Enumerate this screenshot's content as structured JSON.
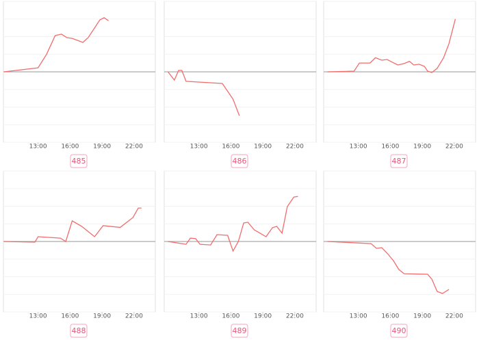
{
  "chart_data": [
    {
      "type": "line",
      "label": "485",
      "xlim": [
        9.75,
        24
      ],
      "ylim": [
        -4,
        4
      ],
      "yticks": [
        -4,
        -3,
        -2,
        -1,
        0,
        1,
        2,
        3,
        4
      ],
      "xticks": [
        {
          "value": 13,
          "label": "13:00"
        },
        {
          "value": 16,
          "label": "16:00"
        },
        {
          "value": 19,
          "label": "19:00"
        },
        {
          "value": 22,
          "label": "22:00"
        }
      ],
      "series": [
        {
          "color": "#f26b6b",
          "x": [
            9.8,
            13.0,
            13.8,
            14.6,
            15.2,
            15.7,
            16.2,
            17.2,
            17.7,
            18.8,
            19.2,
            19.6
          ],
          "values": [
            0,
            0.23,
            1.0,
            2.06,
            2.14,
            1.94,
            1.9,
            1.67,
            1.94,
            2.95,
            3.07,
            2.9
          ]
        }
      ]
    },
    {
      "type": "line",
      "label": "486",
      "xlim": [
        9.75,
        24
      ],
      "ylim": [
        -4,
        4
      ],
      "yticks": [
        -4,
        -3,
        -2,
        -1,
        0,
        1,
        2,
        3,
        4
      ],
      "xticks": [
        {
          "value": 13,
          "label": "13:00"
        },
        {
          "value": 16,
          "label": "16:00"
        },
        {
          "value": 19,
          "label": "19:00"
        },
        {
          "value": 22,
          "label": "22:00"
        }
      ],
      "series": [
        {
          "color": "#f26b6b",
          "x": [
            10.1,
            10.7,
            11.1,
            11.4,
            11.8,
            15.2,
            16.2,
            16.8
          ],
          "values": [
            0,
            -0.47,
            0.08,
            0.08,
            -0.54,
            -0.66,
            -1.55,
            -2.49
          ]
        }
      ]
    },
    {
      "type": "line",
      "label": "487",
      "xlim": [
        9.75,
        24
      ],
      "ylim": [
        -4,
        4
      ],
      "yticks": [
        -4,
        -3,
        -2,
        -1,
        0,
        1,
        2,
        3,
        4
      ],
      "xticks": [
        {
          "value": 13,
          "label": "13:00"
        },
        {
          "value": 16,
          "label": "16:00"
        },
        {
          "value": 19,
          "label": "19:00"
        },
        {
          "value": 22,
          "label": "22:00"
        }
      ],
      "series": [
        {
          "color": "#f26b6b",
          "x": [
            10.1,
            12.6,
            13.1,
            14.1,
            14.6,
            15.2,
            15.7,
            16.7,
            17.3,
            17.8,
            18.2,
            18.7,
            19.2,
            19.5,
            19.9,
            20.4,
            21.0,
            21.5,
            22.1
          ],
          "values": [
            0,
            0.04,
            0.5,
            0.5,
            0.8,
            0.66,
            0.7,
            0.39,
            0.47,
            0.6,
            0.39,
            0.43,
            0.31,
            0.04,
            -0.04,
            0.2,
            0.8,
            1.6,
            3.0
          ]
        }
      ]
    },
    {
      "type": "line",
      "label": "488",
      "xlim": [
        9.75,
        24
      ],
      "ylim": [
        -4,
        4
      ],
      "yticks": [
        -4,
        -3,
        -2,
        -1,
        0,
        1,
        2,
        3,
        4
      ],
      "xticks": [
        {
          "value": 13,
          "label": "13:00"
        },
        {
          "value": 16,
          "label": "16:00"
        },
        {
          "value": 19,
          "label": "19:00"
        },
        {
          "value": 22,
          "label": "22:00"
        }
      ],
      "series": [
        {
          "color": "#f26b6b",
          "x": [
            9.8,
            12.7,
            13.0,
            15.1,
            15.6,
            16.2,
            17.1,
            18.3,
            19.1,
            20.7,
            21.9,
            22.4,
            22.7
          ],
          "values": [
            0,
            -0.04,
            0.27,
            0.19,
            0,
            1.17,
            0.86,
            0.27,
            0.9,
            0.8,
            1.36,
            1.9,
            1.9
          ]
        }
      ]
    },
    {
      "type": "line",
      "label": "489",
      "xlim": [
        9.75,
        24
      ],
      "ylim": [
        -4,
        4
      ],
      "yticks": [
        -4,
        -3,
        -2,
        -1,
        0,
        1,
        2,
        3,
        4
      ],
      "xticks": [
        {
          "value": 13,
          "label": "13:00"
        },
        {
          "value": 16,
          "label": "16:00"
        },
        {
          "value": 19,
          "label": "19:00"
        },
        {
          "value": 22,
          "label": "22:00"
        }
      ],
      "series": [
        {
          "color": "#f26b6b",
          "x": [
            10.1,
            11.8,
            12.2,
            12.7,
            13.1,
            14.1,
            14.7,
            15.7,
            16.2,
            16.7,
            17.2,
            17.6,
            18.2,
            19.3,
            19.9,
            20.3,
            20.8,
            21.3,
            21.9,
            22.3
          ],
          "values": [
            0,
            -0.16,
            0.19,
            0.16,
            -0.16,
            -0.2,
            0.39,
            0.35,
            -0.54,
            0,
            1.05,
            1.09,
            0.66,
            0.27,
            0.78,
            0.86,
            0.47,
            1.98,
            2.52,
            2.56
          ]
        }
      ]
    },
    {
      "type": "line",
      "label": "490",
      "xlim": [
        9.75,
        24
      ],
      "ylim": [
        -4,
        4
      ],
      "yticks": [
        -4,
        -3,
        -2,
        -1,
        0,
        1,
        2,
        3,
        4
      ],
      "xticks": [
        {
          "value": 13,
          "label": "13:00"
        },
        {
          "value": 16,
          "label": "16:00"
        },
        {
          "value": 19,
          "label": "19:00"
        },
        {
          "value": 22,
          "label": "22:00"
        }
      ],
      "series": [
        {
          "color": "#f26b6b",
          "x": [
            10.1,
            14.2,
            14.7,
            15.2,
            15.7,
            16.3,
            16.8,
            17.3,
            19.5,
            19.9,
            20.4,
            20.9,
            21.5
          ],
          "values": [
            0,
            -0.12,
            -0.39,
            -0.35,
            -0.66,
            -1.09,
            -1.59,
            -1.83,
            -1.86,
            -2.14,
            -2.84,
            -2.95,
            -2.72
          ]
        }
      ]
    }
  ]
}
